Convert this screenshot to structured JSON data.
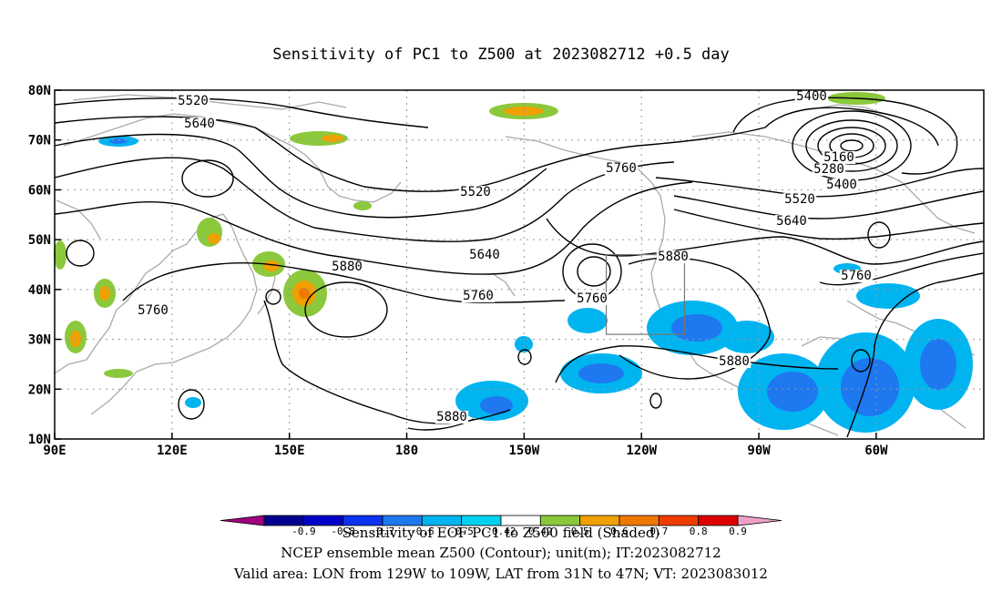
{
  "title": "Sensitivity of PC1 to Z500 at 2023082712 +0.5 day",
  "colorbar": {
    "label": "Sensitivity of EOF PC1 to Z500 field (Shaded)",
    "ticks": [
      "-0.9",
      "-0.8",
      "-0.7",
      "-0.6",
      "-0.5",
      "-0.42",
      "0.42",
      "0.5",
      "0.6",
      "0.7",
      "0.8",
      "0.9"
    ],
    "colors": [
      "#a0007d",
      "#00008c",
      "#0000c8",
      "#0a32f0",
      "#1e78f0",
      "#00b4f0",
      "#00d2f0",
      "#ffffff",
      "#8cc83c",
      "#f0a000",
      "#f07800",
      "#f03c00",
      "#dc0000",
      "#f0a0c8"
    ]
  },
  "footer": {
    "line1": "NCEP ensemble mean Z500 (Contour); unit(m); IT:2023082712",
    "line2": "Valid area: LON from 129W to 109W, LAT from 31N to 47N; VT: 2023083012"
  },
  "map": {
    "lon_labels": [
      "90E",
      "120E",
      "150E",
      "180",
      "150W",
      "120W",
      "90W",
      "60W"
    ],
    "lat_labels": [
      "10N",
      "20N",
      "30N",
      "40N",
      "50N",
      "60N",
      "70N",
      "80N"
    ],
    "contour_labels": [
      "5520",
      "5640",
      "5520",
      "5760",
      "5640",
      "5760",
      "5880",
      "5760",
      "5880",
      "5880",
      "5760",
      "5880",
      "5400",
      "5160",
      "5280",
      "5400",
      "5520",
      "5640",
      "5760"
    ],
    "valid_box": {
      "lon_min": -129,
      "lon_max": -109,
      "lat_min": 31,
      "lat_max": 47
    }
  }
}
